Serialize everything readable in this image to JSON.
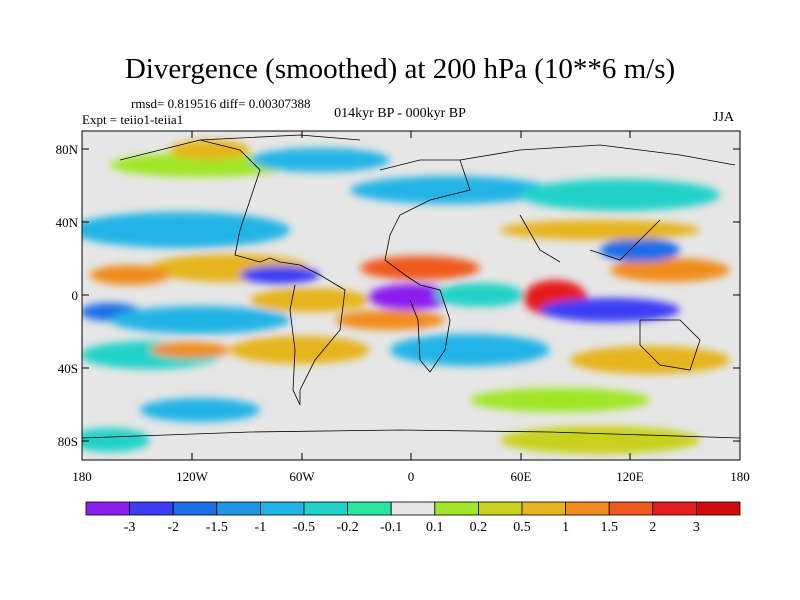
{
  "title": "Divergence (smoothed) at 200 hPa (10**6 m/s)",
  "stats_line": "rmsd= 0.819516 diff= 0.00307388",
  "experiment": "Expt = teiio1-teiia1",
  "period": "014kyr BP - 000kyr BP",
  "season": "JJA",
  "map": {
    "projection": "cylindrical-equidistant",
    "lon_range": [
      -180,
      180
    ],
    "lat_range": [
      -90,
      90
    ],
    "lat_ticks": [
      "80N",
      "40N",
      "0",
      "40S",
      "80S"
    ],
    "lon_ticks": [
      "180",
      "120W",
      "60W",
      "0",
      "60E",
      "120E",
      "180"
    ],
    "coastlines": true
  },
  "colorbar": {
    "labels": [
      "-3",
      "-2",
      "-1.5",
      "-1",
      "-0.5",
      "-0.2",
      "-0.1",
      "0.1",
      "0.2",
      "0.5",
      "1",
      "1.5",
      "2",
      "3"
    ],
    "colors": [
      "#8c1ef0",
      "#3c3cf5",
      "#1e6ee6",
      "#1e96e6",
      "#20b4e6",
      "#20d2c8",
      "#28e6a0",
      "#e6e6e6",
      "#a0e628",
      "#c8d21e",
      "#e6b41e",
      "#f08c1e",
      "#f05a1e",
      "#e61e1e",
      "#d20a0a"
    ]
  }
}
